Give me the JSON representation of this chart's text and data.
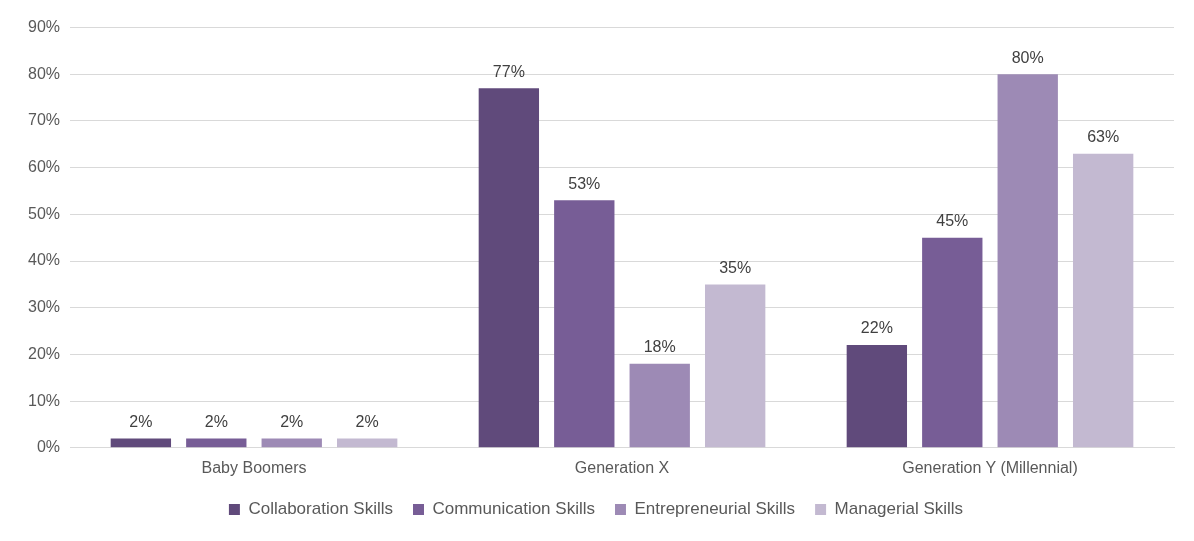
{
  "chart_data": {
    "type": "bar",
    "categories": [
      "Baby Boomers",
      "Generation X",
      "Generation Y (Millennial)"
    ],
    "series": [
      {
        "name": "Collaboration Skills",
        "color": "#604a7b",
        "values": [
          2,
          77,
          22
        ],
        "value_labels": [
          "2%",
          "77%",
          "22%"
        ]
      },
      {
        "name": "Communication Skills",
        "color": "#775d96",
        "values": [
          2,
          53,
          45
        ],
        "value_labels": [
          "2%",
          "53%",
          "45%"
        ]
      },
      {
        "name": "Entrepreneurial Skills",
        "color": "#9d8ab5",
        "values": [
          2,
          18,
          80
        ],
        "value_labels": [
          "2%",
          "18%",
          "80%"
        ]
      },
      {
        "name": "Managerial Skills",
        "color": "#c3b9d1",
        "values": [
          2,
          35,
          63
        ],
        "value_labels": [
          "2%",
          "35%",
          "63%"
        ]
      }
    ],
    "ylim": [
      0,
      90
    ],
    "yticks": [
      {
        "value": 0,
        "label": "0%"
      },
      {
        "value": 10,
        "label": "10%"
      },
      {
        "value": 20,
        "label": "20%"
      },
      {
        "value": 30,
        "label": "30%"
      },
      {
        "value": 40,
        "label": "40%"
      },
      {
        "value": 50,
        "label": "50%"
      },
      {
        "value": 60,
        "label": "60%"
      },
      {
        "value": 70,
        "label": "70%"
      },
      {
        "value": 80,
        "label": "80%"
      },
      {
        "value": 90,
        "label": "90%"
      }
    ],
    "grid": "y",
    "legend": "bottom"
  }
}
